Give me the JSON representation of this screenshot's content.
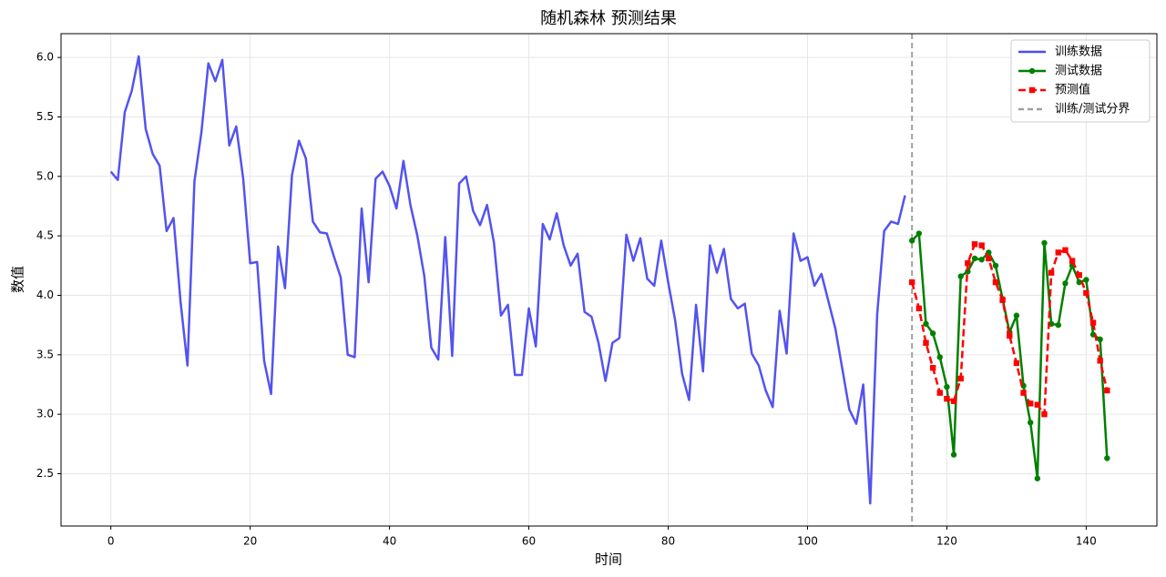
{
  "chart_data": {
    "type": "line",
    "title": "随机森林 预测结果",
    "xlabel": "时间",
    "ylabel": "数值",
    "xlim": [
      -7.15,
      150.15
    ],
    "ylim": [
      2.06,
      6.2
    ],
    "xticks": [
      0,
      20,
      40,
      60,
      80,
      100,
      120,
      140
    ],
    "yticks": [
      2.5,
      {
        "value": 3,
        "label": "3.0"
      },
      3.5,
      {
        "value": 4,
        "label": "4.0"
      },
      4.5,
      {
        "value": 5,
        "label": "5.0"
      },
      5.5,
      {
        "value": 6,
        "label": "6.0"
      }
    ],
    "grid": true,
    "legend": "upper right",
    "series": [
      {
        "name": "训练数据",
        "color": "#4a4af0",
        "style": "solid",
        "marker": "none",
        "x": [
          0,
          1,
          2,
          3,
          4,
          5,
          6,
          7,
          8,
          9,
          10,
          11,
          12,
          13,
          14,
          15,
          16,
          17,
          18,
          19,
          20,
          21,
          22,
          23,
          24,
          25,
          26,
          27,
          28,
          29,
          30,
          31,
          32,
          33,
          34,
          35,
          36,
          37,
          38,
          39,
          40,
          41,
          42,
          43,
          44,
          45,
          46,
          47,
          48,
          49,
          50,
          51,
          52,
          53,
          54,
          55,
          56,
          57,
          58,
          59,
          60,
          61,
          62,
          63,
          64,
          65,
          66,
          67,
          68,
          69,
          70,
          71,
          72,
          73,
          74,
          75,
          76,
          77,
          78,
          79,
          80,
          81,
          82,
          83,
          84,
          85,
          86,
          87,
          88,
          89,
          90,
          91,
          92,
          93,
          94,
          95,
          96,
          97,
          98,
          99,
          100,
          101,
          102,
          103,
          104,
          105,
          106,
          107,
          108,
          109,
          110,
          111,
          112,
          113,
          114
        ],
        "values": [
          5.04,
          4.97,
          5.54,
          5.72,
          6.01,
          5.4,
          5.19,
          5.09,
          4.54,
          4.65,
          3.95,
          3.41,
          4.96,
          5.37,
          5.95,
          5.8,
          5.98,
          5.26,
          5.42,
          4.98,
          4.27,
          4.28,
          3.45,
          3.17,
          4.41,
          4.06,
          5.01,
          5.3,
          5.15,
          4.62,
          4.53,
          4.52,
          4.33,
          4.15,
          3.5,
          3.48,
          4.73,
          4.11,
          4.98,
          5.04,
          4.92,
          4.73,
          5.13,
          4.76,
          4.5,
          4.16,
          3.56,
          3.46,
          4.49,
          3.49,
          4.94,
          5.0,
          4.71,
          4.59,
          4.76,
          4.44,
          3.83,
          3.92,
          3.33,
          3.33,
          3.89,
          3.57,
          4.6,
          4.47,
          4.69,
          4.42,
          4.25,
          4.35,
          3.86,
          3.82,
          3.6,
          3.28,
          3.6,
          3.64,
          4.51,
          4.29,
          4.48,
          4.14,
          4.08,
          4.46,
          4.11,
          3.79,
          3.34,
          3.12,
          3.92,
          3.36,
          4.42,
          4.19,
          4.39,
          3.97,
          3.89,
          3.93,
          3.51,
          3.41,
          3.2,
          3.06,
          3.87,
          3.51,
          4.52,
          4.29,
          4.32,
          4.08,
          4.18,
          3.95,
          3.72,
          3.38,
          3.04,
          2.92,
          3.25,
          2.25,
          3.84,
          4.54,
          4.62,
          4.6,
          4.84
        ]
      },
      {
        "name": "测试数据",
        "color": "#008000",
        "style": "solid",
        "marker": "circle",
        "x": [
          115,
          116,
          117,
          118,
          119,
          120,
          121,
          122,
          123,
          124,
          125,
          126,
          127,
          128,
          129,
          130,
          131,
          132,
          133,
          134,
          135,
          136,
          137,
          138,
          139,
          140,
          141,
          142,
          143
        ],
        "values": [
          4.46,
          4.52,
          3.76,
          3.68,
          3.48,
          3.23,
          2.66,
          4.16,
          4.2,
          4.31,
          4.3,
          4.36,
          4.25,
          3.97,
          3.69,
          3.83,
          3.24,
          2.93,
          2.46,
          4.44,
          3.76,
          3.75,
          4.1,
          4.25,
          4.11,
          4.13,
          3.67,
          3.63,
          2.63
        ]
      },
      {
        "name": "预测值",
        "color": "#ff0000",
        "style": "dashed",
        "marker": "square",
        "x": [
          115,
          116,
          117,
          118,
          119,
          120,
          121,
          122,
          123,
          124,
          125,
          126,
          127,
          128,
          129,
          130,
          131,
          132,
          133,
          134,
          135,
          136,
          137,
          138,
          139,
          140,
          141,
          142,
          143
        ],
        "values": [
          4.11,
          3.89,
          3.6,
          3.39,
          3.18,
          3.13,
          3.11,
          3.3,
          4.27,
          4.43,
          4.42,
          4.31,
          4.11,
          3.96,
          3.66,
          3.43,
          3.18,
          3.09,
          3.08,
          3.0,
          4.19,
          4.36,
          4.38,
          4.29,
          4.17,
          4.02,
          3.77,
          3.45,
          3.2
        ]
      }
    ],
    "split": {
      "name": "训练/测试分界",
      "x": 115,
      "color": "#a0a0a0"
    }
  }
}
